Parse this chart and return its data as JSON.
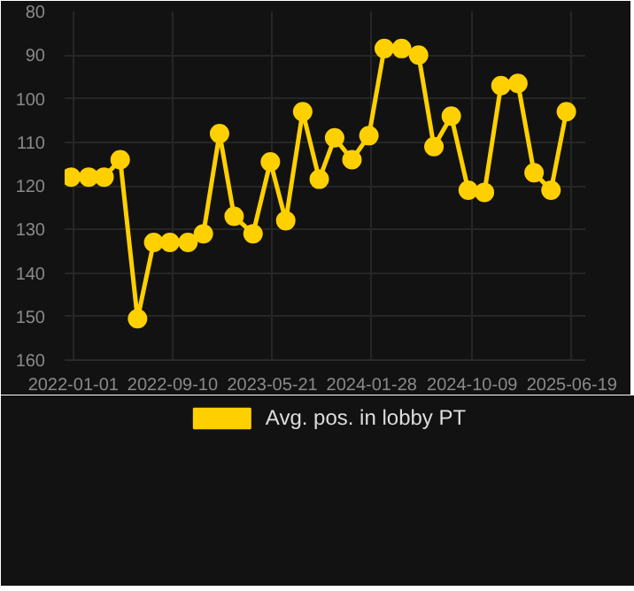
{
  "chart_data": {
    "type": "line",
    "x": [
      "2021-12-26",
      "2022-02-09",
      "2022-03-20",
      "2022-04-30",
      "2022-06-13",
      "2022-07-24",
      "2022-09-03",
      "2022-10-19",
      "2022-11-27",
      "2023-01-07",
      "2023-02-13",
      "2023-04-02",
      "2023-05-16",
      "2023-06-24",
      "2023-08-06",
      "2023-09-17",
      "2023-10-26",
      "2023-12-09",
      "2024-01-21",
      "2024-02-29",
      "2024-04-13",
      "2024-05-26",
      "2024-07-04",
      "2024-08-17",
      "2024-09-29",
      "2024-11-09",
      "2024-12-21",
      "2025-02-02",
      "2025-03-15",
      "2025-04-27",
      "2025-06-05"
    ],
    "series": [
      {
        "name": "Avg. pos. in lobby PT",
        "color": "#ffd000",
        "values": [
          118,
          118,
          118,
          114,
          150.5,
          133,
          133,
          133,
          131,
          108,
          127,
          131,
          114.5,
          128,
          103,
          118.5,
          109,
          114,
          108.5,
          88.5,
          88.5,
          90,
          111,
          104,
          121,
          121.5,
          97,
          96.5,
          117,
          121,
          103
        ]
      }
    ],
    "xlim": [
      "2021-12-10",
      "2025-07-23"
    ],
    "xticks": [
      "2022-01-01",
      "2022-09-10",
      "2023-05-21",
      "2024-01-28",
      "2024-10-09",
      "2025-06-19"
    ],
    "ylim": [
      160,
      80
    ],
    "yticks": [
      80,
      90,
      100,
      110,
      120,
      130,
      140,
      150,
      160
    ],
    "grid": true,
    "legend": "bottom",
    "marker": "circle",
    "line_style": "solid"
  }
}
